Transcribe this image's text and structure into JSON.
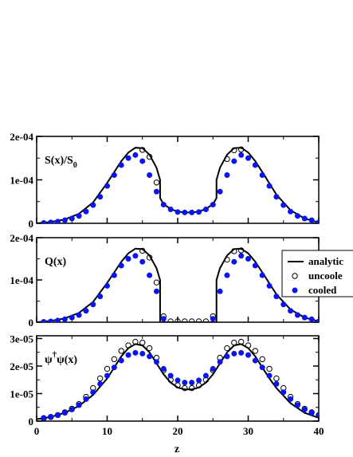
{
  "chart_data": {
    "type": "scatter",
    "xlabel": "z",
    "xlim": [
      0,
      40
    ],
    "x_ticks": [
      0,
      10,
      20,
      30,
      40
    ],
    "x_tick_labels": [
      "0",
      "10",
      "20",
      "30",
      "40"
    ],
    "colors": {
      "analytic": "#000000",
      "uncooled": "#000000",
      "cooled": "#0a14f0"
    },
    "legend": {
      "placement": "right, beside middle panel (clipped at figure edge)",
      "entries": [
        {
          "key": "analytic",
          "label": "analytic",
          "marker": "line"
        },
        {
          "key": "uncooled",
          "label": "uncoole",
          "marker": "open-circle"
        },
        {
          "key": "cooled",
          "label": "cooled",
          "marker": "filled-circle"
        }
      ]
    },
    "panels": [
      {
        "label_main": "S(x)/S",
        "label_sub": "0",
        "ylim": [
          0,
          0.0002
        ],
        "y_ticks": [
          0,
          0.0001,
          0.0002
        ],
        "y_tick_labels": [
          "0",
          "1e-04",
          "2e-04"
        ],
        "analytic": {
          "x": [
            0,
            2,
            4,
            6,
            8,
            10,
            11,
            12,
            13,
            14,
            15,
            16,
            17,
            17.5,
            17.5,
            18,
            19,
            20,
            21,
            22,
            23,
            24,
            25,
            25.5,
            25.5,
            26,
            27,
            28,
            29,
            30,
            31,
            32,
            34,
            36,
            38,
            40
          ],
          "y": [
            0,
            3e-06,
            9e-06,
            2.2e-05,
            4.8e-05,
            9.3e-05,
            0.000118,
            0.000143,
            0.000163,
            0.000174,
            0.000173,
            0.000158,
            0.000128,
            0.0001,
            5.8e-05,
            4.4e-05,
            3.3e-05,
            2.7e-05,
            2.5e-05,
            2.5e-05,
            2.7e-05,
            3.3e-05,
            4.4e-05,
            5.8e-05,
            0.0001,
            0.000128,
            0.000158,
            0.000173,
            0.000174,
            0.000163,
            0.000143,
            0.000118,
            6.6e-05,
            3e-05,
            1.1e-05,
            2e-06
          ]
        },
        "uncooled": {
          "x": [
            15,
            16,
            17,
            27,
            28,
            29
          ],
          "y": [
            0.000169,
            0.000153,
            9.4e-05,
            0.000148,
            0.000168,
            0.00017
          ]
        },
        "cooled": {
          "x": [
            1,
            2,
            3,
            4,
            5,
            6,
            7,
            8,
            9,
            10,
            11,
            12,
            13,
            14,
            15,
            16,
            17,
            18,
            19,
            20,
            21,
            22,
            23,
            24,
            25,
            26,
            27,
            28,
            29,
            30,
            31,
            32,
            33,
            34,
            35,
            36,
            37,
            38,
            39,
            40
          ],
          "y": [
            1e-06,
            2e-06,
            4e-06,
            7e-06,
            1.1e-05,
            1.7e-05,
            2.7e-05,
            4.2e-05,
            6.1e-05,
            8.6e-05,
            0.000111,
            0.000134,
            0.00015,
            0.000157,
            0.000143,
            0.000111,
            7.3e-05,
            4.3e-05,
            3.2e-05,
            2.6e-05,
            2.5e-05,
            2.5e-05,
            2.6e-05,
            3.2e-05,
            4.3e-05,
            7.3e-05,
            0.000111,
            0.000143,
            0.000157,
            0.00015,
            0.000134,
            0.000111,
            8.6e-05,
            6.1e-05,
            4.2e-05,
            2.7e-05,
            1.7e-05,
            1.1e-05,
            7e-06,
            2e-06
          ]
        }
      },
      {
        "label_main": "Q(x)",
        "label_sub": "",
        "ylim": [
          0,
          0.0002
        ],
        "y_ticks": [
          0,
          0.0001,
          0.0002
        ],
        "y_tick_labels": [
          "0",
          "1e-04",
          "2e-04"
        ],
        "analytic": {
          "x": [
            0,
            2,
            4,
            6,
            8,
            10,
            11,
            12,
            13,
            14,
            15,
            16,
            17,
            17.5,
            17.5,
            25.5,
            25.5,
            26,
            27,
            28,
            29,
            30,
            31,
            32,
            34,
            36,
            38,
            40
          ],
          "y": [
            0,
            3e-06,
            9e-06,
            2.2e-05,
            4.8e-05,
            9.3e-05,
            0.000118,
            0.000143,
            0.000163,
            0.000174,
            0.000173,
            0.000158,
            0.000128,
            0.0001,
            0,
            0,
            0.0001,
            0.000128,
            0.000158,
            0.000173,
            0.000174,
            0.000163,
            0.000143,
            0.000118,
            6.6e-05,
            3e-05,
            1.1e-05,
            2e-06
          ]
        },
        "uncooled": {
          "x": [
            15,
            16,
            17,
            18,
            19,
            20,
            21,
            22,
            23,
            24,
            25,
            27,
            28,
            29
          ],
          "y": [
            0.000169,
            0.000153,
            9.4e-05,
            1.4e-05,
            2e-06,
            2e-06,
            2e-06,
            2e-06,
            2e-06,
            2e-06,
            1.4e-05,
            0.000148,
            0.000168,
            0.00017
          ]
        },
        "cooled": {
          "x": [
            1,
            2,
            3,
            4,
            5,
            6,
            7,
            8,
            9,
            10,
            11,
            12,
            13,
            14,
            15,
            16,
            17,
            18,
            25,
            26,
            27,
            28,
            29,
            30,
            31,
            32,
            33,
            34,
            35,
            36,
            37,
            38,
            39,
            40
          ],
          "y": [
            1e-06,
            2e-06,
            4e-06,
            7e-06,
            1.1e-05,
            1.7e-05,
            2.7e-05,
            4.2e-05,
            6.1e-05,
            8.6e-05,
            0.000111,
            0.000134,
            0.00015,
            0.000157,
            0.000143,
            0.000111,
            7.3e-05,
            8e-06,
            8e-06,
            7.3e-05,
            0.000111,
            0.000143,
            0.000157,
            0.00015,
            0.000134,
            0.000111,
            8.6e-05,
            6.1e-05,
            4.2e-05,
            2.7e-05,
            1.7e-05,
            1.1e-05,
            7e-06,
            2e-06
          ]
        }
      },
      {
        "label_main": "ψ",
        "label_sup": "†",
        "label_rest": "ψ(x)",
        "ylim": [
          0,
          3.1e-05
        ],
        "y_ticks": [
          0,
          1e-05,
          2e-05,
          3e-05
        ],
        "y_tick_labels": [
          "0",
          "1e-05",
          "2e-05",
          "3e-05"
        ],
        "analytic": {
          "x": [
            0,
            2,
            4,
            6,
            8,
            10,
            11,
            12,
            13,
            14,
            15,
            16,
            17,
            18,
            19,
            20,
            21,
            22,
            23,
            24,
            25,
            26,
            27,
            28,
            29,
            30,
            31,
            32,
            33,
            34,
            36,
            38,
            40
          ],
          "y": [
            7e-07,
            1.5e-06,
            3e-06,
            5.5e-06,
            9.5e-06,
            1.55e-05,
            1.95e-05,
            2.35e-05,
            2.65e-05,
            2.8e-05,
            2.75e-05,
            2.5e-05,
            2.1e-05,
            1.7e-05,
            1.4e-05,
            1.22e-05,
            1.15e-05,
            1.15e-05,
            1.22e-05,
            1.4e-05,
            1.7e-05,
            2.1e-05,
            2.5e-05,
            2.75e-05,
            2.8e-05,
            2.65e-05,
            2.35e-05,
            1.95e-05,
            1.55e-05,
            1.2e-05,
            6.5e-06,
            3e-06,
            1.2e-06
          ]
        },
        "uncooled": {
          "x": [
            1,
            2,
            3,
            4,
            5,
            6,
            7,
            8,
            9,
            10,
            11,
            12,
            13,
            14,
            15,
            16,
            17,
            18,
            19,
            20,
            21,
            22,
            23,
            24,
            25,
            26,
            27,
            28,
            29,
            30,
            31,
            32,
            33,
            34,
            35,
            36,
            37,
            38,
            39,
            40
          ],
          "y": [
            1e-06,
            1.5e-06,
            2.2e-06,
            3.2e-06,
            4.5e-06,
            6.2e-06,
            8.8e-06,
            1.2e-05,
            1.55e-05,
            1.9e-05,
            2.25e-05,
            2.55e-05,
            2.75e-05,
            2.88e-05,
            2.85e-05,
            2.65e-05,
            2.3e-05,
            1.85e-05,
            1.5e-05,
            1.3e-05,
            1.2e-05,
            1.2e-05,
            1.3e-05,
            1.5e-05,
            1.85e-05,
            2.3e-05,
            2.65e-05,
            2.85e-05,
            2.88e-05,
            2.75e-05,
            2.55e-05,
            2.25e-05,
            1.9e-05,
            1.55e-05,
            1.2e-05,
            8.8e-06,
            6.2e-06,
            4.5e-06,
            3.2e-06,
            2.2e-06
          ]
        },
        "cooled": {
          "x": [
            1,
            2,
            3,
            4,
            5,
            6,
            7,
            8,
            9,
            10,
            11,
            12,
            13,
            14,
            15,
            16,
            17,
            18,
            19,
            20,
            21,
            22,
            23,
            24,
            25,
            26,
            27,
            28,
            29,
            30,
            31,
            32,
            33,
            34,
            35,
            36,
            37,
            38,
            39,
            40
          ],
          "y": [
            1.2e-06,
            1.6e-06,
            2.2e-06,
            3e-06,
            4.2e-06,
            5.8e-06,
            8e-06,
            1.05e-05,
            1.35e-05,
            1.65e-05,
            1.95e-05,
            2.2e-05,
            2.4e-05,
            2.48e-05,
            2.45e-05,
            2.35e-05,
            2.15e-05,
            1.9e-05,
            1.65e-05,
            1.48e-05,
            1.4e-05,
            1.4e-05,
            1.48e-05,
            1.65e-05,
            1.9e-05,
            2.15e-05,
            2.35e-05,
            2.45e-05,
            2.48e-05,
            2.4e-05,
            2.2e-05,
            1.95e-05,
            1.65e-05,
            1.35e-05,
            1.05e-05,
            8e-06,
            5.8e-06,
            4.2e-06,
            3e-06,
            2.2e-06
          ]
        }
      }
    ]
  }
}
